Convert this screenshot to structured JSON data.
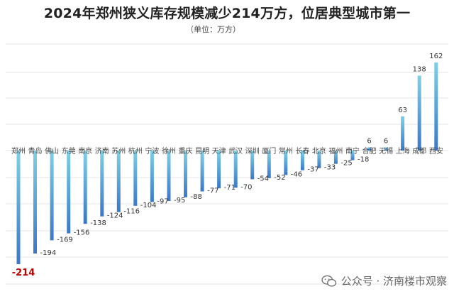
{
  "header": {
    "title": "2024年郑州狭义库存规模减少214万方，位居典型城市第一",
    "unit": "（单位：万方）"
  },
  "footer": {
    "text": "公众号 · 济南楼市观察",
    "icon": "wechat-icon"
  },
  "colors": {
    "bar_top": "#7ed0e6",
    "bar_bottom": "#3a78c8",
    "highlight_label": "#c00000",
    "label": "#333333"
  },
  "chart_data": {
    "type": "bar",
    "title": "2024年郑州狭义库存规模减少214万方，位居典型城市第一",
    "ylabel": "（单位：万方）",
    "categories": [
      "郑州",
      "青岛",
      "佛山",
      "东莞",
      "南京",
      "济南",
      "苏州",
      "杭州",
      "宁波",
      "徐州",
      "重庆",
      "昆明",
      "天津",
      "武汉",
      "深圳",
      "厦门",
      "常州",
      "长春",
      "北京",
      "福州",
      "南宁",
      "合肥",
      "无锡",
      "上海",
      "成都",
      "西安"
    ],
    "values": [
      -214,
      -194,
      -169,
      -156,
      -138,
      -124,
      -116,
      -104,
      -97,
      -95,
      -88,
      -77,
      -71,
      -70,
      -54,
      -52,
      -46,
      -37,
      -33,
      -25,
      -18,
      6,
      6,
      63,
      138,
      162
    ],
    "ylim": [
      -214,
      162
    ],
    "grid": true,
    "highlight_index": 0
  }
}
